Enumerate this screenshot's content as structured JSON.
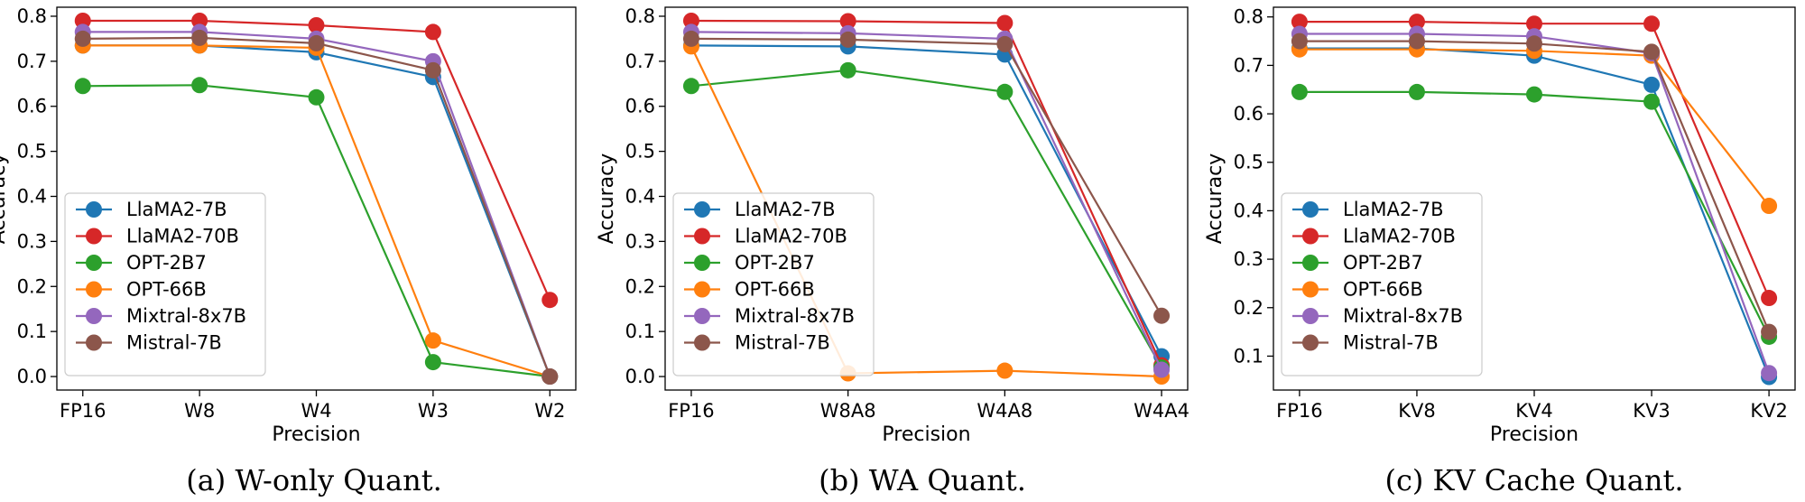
{
  "colors": {
    "LlaMA2-7B": "#1f77b4",
    "LlaMA2-70B": "#d62728",
    "OPT-2B7": "#2ca02c",
    "OPT-66B": "#ff7f0e",
    "Mixtral-8x7B": "#9467bd",
    "Mistral-7B": "#8c564b"
  },
  "chart_data": [
    {
      "type": "line",
      "caption": "(a) W-only Quant.",
      "xlabel": "Precision",
      "ylabel": "Accuracy",
      "categories": [
        "FP16",
        "W8",
        "W4",
        "W3",
        "W2"
      ],
      "ylim": [
        -0.03,
        0.82
      ],
      "yticks": [
        "0.0",
        "0.1",
        "0.2",
        "0.3",
        "0.4",
        "0.5",
        "0.6",
        "0.7",
        "0.8"
      ],
      "legend_position": "lower-left",
      "series": [
        {
          "name": "LlaMA2-7B",
          "values": [
            0.735,
            0.735,
            0.72,
            0.665,
            0.0
          ]
        },
        {
          "name": "LlaMA2-70B",
          "values": [
            0.79,
            0.79,
            0.78,
            0.765,
            0.17
          ]
        },
        {
          "name": "OPT-2B7",
          "values": [
            0.645,
            0.647,
            0.62,
            0.032,
            0.0
          ]
        },
        {
          "name": "OPT-66B",
          "values": [
            0.735,
            0.735,
            0.73,
            0.08,
            0.0
          ]
        },
        {
          "name": "Mixtral-8x7B",
          "values": [
            0.765,
            0.765,
            0.75,
            0.7,
            0.0
          ]
        },
        {
          "name": "Mistral-7B",
          "values": [
            0.75,
            0.752,
            0.74,
            0.68,
            0.0
          ]
        }
      ]
    },
    {
      "type": "line",
      "caption": "(b) WA Quant.",
      "xlabel": "Precision",
      "ylabel": "Accuracy",
      "categories": [
        "FP16",
        "W8A8",
        "W4A8",
        "W4A4"
      ],
      "ylim": [
        -0.03,
        0.82
      ],
      "yticks": [
        "0.0",
        "0.1",
        "0.2",
        "0.3",
        "0.4",
        "0.5",
        "0.6",
        "0.7",
        "0.8"
      ],
      "legend_position": "lower-left",
      "series": [
        {
          "name": "LlaMA2-7B",
          "values": [
            0.735,
            0.733,
            0.715,
            0.045
          ]
        },
        {
          "name": "LlaMA2-70B",
          "values": [
            0.79,
            0.789,
            0.785,
            0.025
          ]
        },
        {
          "name": "OPT-2B7",
          "values": [
            0.645,
            0.68,
            0.632,
            0.02
          ]
        },
        {
          "name": "OPT-66B",
          "values": [
            0.733,
            0.007,
            0.013,
            0.0
          ]
        },
        {
          "name": "Mixtral-8x7B",
          "values": [
            0.765,
            0.762,
            0.75,
            0.015
          ]
        },
        {
          "name": "Mistral-7B",
          "values": [
            0.75,
            0.748,
            0.738,
            0.135
          ]
        }
      ]
    },
    {
      "type": "line",
      "caption": "(c) KV Cache Quant.",
      "xlabel": "Precision",
      "ylabel": "Accuracy",
      "categories": [
        "FP16",
        "KV8",
        "KV4",
        "KV3",
        "KV2"
      ],
      "ylim": [
        0.03,
        0.82
      ],
      "yticks": [
        "0.1",
        "0.2",
        "0.3",
        "0.4",
        "0.5",
        "0.6",
        "0.7",
        "0.8"
      ],
      "legend_position": "lower-left",
      "series": [
        {
          "name": "LlaMA2-7B",
          "values": [
            0.735,
            0.735,
            0.72,
            0.66,
            0.057
          ]
        },
        {
          "name": "LlaMA2-70B",
          "values": [
            0.79,
            0.79,
            0.786,
            0.786,
            0.22
          ]
        },
        {
          "name": "OPT-2B7",
          "values": [
            0.645,
            0.645,
            0.64,
            0.625,
            0.14
          ]
        },
        {
          "name": "OPT-66B",
          "values": [
            0.733,
            0.733,
            0.73,
            0.72,
            0.41
          ]
        },
        {
          "name": "Mixtral-8x7B",
          "values": [
            0.765,
            0.765,
            0.76,
            0.725,
            0.065
          ]
        },
        {
          "name": "Mistral-7B",
          "values": [
            0.75,
            0.75,
            0.745,
            0.728,
            0.15
          ]
        }
      ]
    }
  ]
}
